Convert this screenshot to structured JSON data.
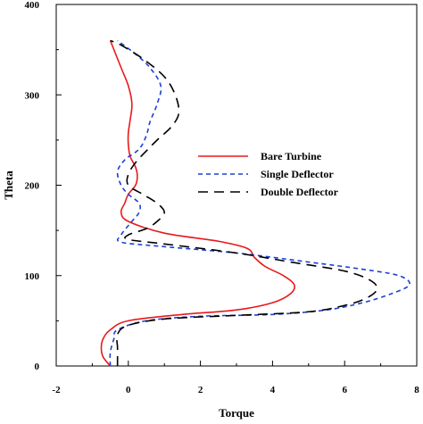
{
  "chart_data": {
    "type": "line",
    "xlabel": "Torque",
    "ylabel": "Theta",
    "xlim": [
      -2,
      8
    ],
    "ylim": [
      0,
      400
    ],
    "x_ticks": [
      "-2",
      "0",
      "2",
      "4",
      "6",
      "8"
    ],
    "y_ticks": [
      "0",
      "100",
      "200",
      "300",
      "400"
    ],
    "grid": false,
    "legend_position": "center-right",
    "series": [
      {
        "name": "Bare Turbine",
        "color": "#e8191c",
        "dash": "solid",
        "points": [
          [
            -0.5,
            0
          ],
          [
            -0.7,
            10
          ],
          [
            -0.75,
            20
          ],
          [
            -0.7,
            30
          ],
          [
            -0.5,
            40
          ],
          [
            0.0,
            50
          ],
          [
            1.5,
            57
          ],
          [
            3.0,
            62
          ],
          [
            4.0,
            70
          ],
          [
            4.5,
            80
          ],
          [
            4.6,
            90
          ],
          [
            4.3,
            100
          ],
          [
            3.8,
            110
          ],
          [
            3.5,
            120
          ],
          [
            3.3,
            130
          ],
          [
            2.5,
            138
          ],
          [
            1.0,
            147
          ],
          [
            0.0,
            160
          ],
          [
            -0.2,
            170
          ],
          [
            -0.1,
            180
          ],
          [
            0.0,
            190
          ],
          [
            0.2,
            200
          ],
          [
            0.25,
            210
          ],
          [
            0.2,
            220
          ],
          [
            0.05,
            232
          ],
          [
            0.0,
            245
          ],
          [
            0.0,
            258
          ],
          [
            0.05,
            272
          ],
          [
            0.1,
            290
          ],
          [
            0.0,
            310
          ],
          [
            -0.2,
            330
          ],
          [
            -0.4,
            350
          ],
          [
            -0.5,
            360
          ]
        ]
      },
      {
        "name": "Single Deflector",
        "color": "#1f3fd6",
        "dash": "5,4",
        "points": [
          [
            -0.5,
            0
          ],
          [
            -0.5,
            15
          ],
          [
            -0.4,
            30
          ],
          [
            -0.3,
            40
          ],
          [
            0.5,
            50
          ],
          [
            2.0,
            55
          ],
          [
            4.0,
            57
          ],
          [
            5.5,
            62
          ],
          [
            6.5,
            70
          ],
          [
            7.3,
            80
          ],
          [
            7.8,
            90
          ],
          [
            7.5,
            100
          ],
          [
            6.5,
            107
          ],
          [
            5.0,
            115
          ],
          [
            3.0,
            125
          ],
          [
            1.0,
            132
          ],
          [
            -0.2,
            137
          ],
          [
            -0.2,
            145
          ],
          [
            0.1,
            160
          ],
          [
            0.3,
            170
          ],
          [
            0.3,
            180
          ],
          [
            0.0,
            190
          ],
          [
            -0.2,
            200
          ],
          [
            -0.3,
            215
          ],
          [
            -0.1,
            228
          ],
          [
            0.3,
            240
          ],
          [
            0.5,
            255
          ],
          [
            0.6,
            270
          ],
          [
            0.8,
            290
          ],
          [
            0.9,
            310
          ],
          [
            0.6,
            330
          ],
          [
            0.2,
            345
          ],
          [
            -0.3,
            360
          ]
        ]
      },
      {
        "name": "Double Deflector",
        "color": "#000000",
        "dash": "11,7",
        "points": [
          [
            -0.3,
            0
          ],
          [
            -0.3,
            20
          ],
          [
            -0.3,
            35
          ],
          [
            0.0,
            45
          ],
          [
            1.0,
            52
          ],
          [
            3.0,
            56
          ],
          [
            5.0,
            60
          ],
          [
            6.0,
            67
          ],
          [
            6.6,
            75
          ],
          [
            6.9,
            85
          ],
          [
            6.7,
            95
          ],
          [
            6.0,
            105
          ],
          [
            4.5,
            115
          ],
          [
            3.0,
            125
          ],
          [
            1.0,
            135
          ],
          [
            0.0,
            140
          ],
          [
            0.0,
            145
          ],
          [
            0.5,
            152
          ],
          [
            0.8,
            160
          ],
          [
            1.0,
            170
          ],
          [
            0.8,
            180
          ],
          [
            0.4,
            190
          ],
          [
            0.0,
            200
          ],
          [
            0.0,
            212
          ],
          [
            0.2,
            225
          ],
          [
            0.5,
            238
          ],
          [
            0.8,
            250
          ],
          [
            1.2,
            265
          ],
          [
            1.4,
            280
          ],
          [
            1.3,
            300
          ],
          [
            1.0,
            320
          ],
          [
            0.4,
            340
          ],
          [
            -0.2,
            355
          ],
          [
            -0.5,
            360
          ]
        ]
      }
    ]
  }
}
